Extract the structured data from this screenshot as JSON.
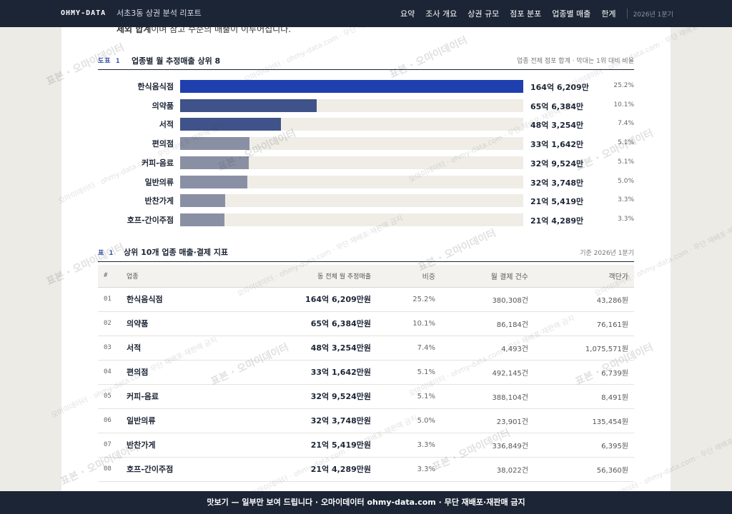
{
  "header": {
    "brand": "OHMY-DATA",
    "report_title": "서초3동 상권 분석 리포트",
    "nav": [
      "요약",
      "조사 개요",
      "상권 규모",
      "점포 분포",
      "업종별 매출",
      "한계"
    ],
    "period": "2026년 1분기"
  },
  "intro": {
    "bold": "제외 합계",
    "rest": "이며 참고 수준의 매출이 이루어집니다."
  },
  "figure": {
    "tag": "도표 1",
    "title": "업종별 월 추정매출 상위 8",
    "note": "업종 전체 점포 합계 · 막대는 1위 대비 비율"
  },
  "colors": {
    "top": "#1f3fae",
    "mid": "#3f5289",
    "low": "#8a90a4"
  },
  "chart_data": {
    "type": "bar",
    "categories": [
      "한식음식점",
      "의약품",
      "서적",
      "편의점",
      "커피-음료",
      "일반의류",
      "반찬가게",
      "호프-간이주점"
    ],
    "values": [
      164.6209,
      65.6384,
      48.3254,
      33.1642,
      32.9524,
      32.3748,
      21.5419,
      21.4289
    ],
    "value_labels": [
      "164억 6,209만",
      "65억 6,384만",
      "48억 3,254만",
      "33억 1,642만",
      "32억 9,524만",
      "32억 3,748만",
      "21억 5,419만",
      "21억 4,289만"
    ],
    "shares": [
      "25.2%",
      "10.1%",
      "7.4%",
      "5.1%",
      "5.1%",
      "5.0%",
      "3.3%",
      "3.3%"
    ],
    "max": 164.6209
  },
  "table": {
    "tag": "표 1",
    "title": "상위 10개 업종 매출·결제 지표",
    "note": "기준 2026년 1분기",
    "columns": [
      "#",
      "업종",
      "동 전체 월 추정매출",
      "비중",
      "월 결제 건수",
      "객단가"
    ],
    "rows": [
      [
        "01",
        "한식음식점",
        "164억 6,209만원",
        "25.2%",
        "380,308건",
        "43,286원"
      ],
      [
        "02",
        "의약품",
        "65억 6,384만원",
        "10.1%",
        "86,184건",
        "76,161원"
      ],
      [
        "03",
        "서적",
        "48억 3,254만원",
        "7.4%",
        "4,493건",
        "1,075,571원"
      ],
      [
        "04",
        "편의점",
        "33억 1,642만원",
        "5.1%",
        "492,145건",
        "6,739원"
      ],
      [
        "05",
        "커피-음료",
        "32억 9,524만원",
        "5.1%",
        "388,104건",
        "8,491원"
      ],
      [
        "06",
        "일반의류",
        "32억 3,748만원",
        "5.0%",
        "23,901건",
        "135,454원"
      ],
      [
        "07",
        "반찬가게",
        "21억 5,419만원",
        "3.3%",
        "336,849건",
        "6,395원"
      ],
      [
        "08",
        "호프-간이주점",
        "21억 4,289만원",
        "3.3%",
        "38,022건",
        "56,360원"
      ]
    ]
  },
  "banner": "맛보기 — 일부만 보여 드립니다 · 오마이데이터 ohmy-data.com · 무단 재배포·재판매 금지",
  "watermark": {
    "main": "표본 · 오마이데이터",
    "sub": "오마이데이터 · ohmy-data.com · 무단 재배포·재판매 금지"
  }
}
